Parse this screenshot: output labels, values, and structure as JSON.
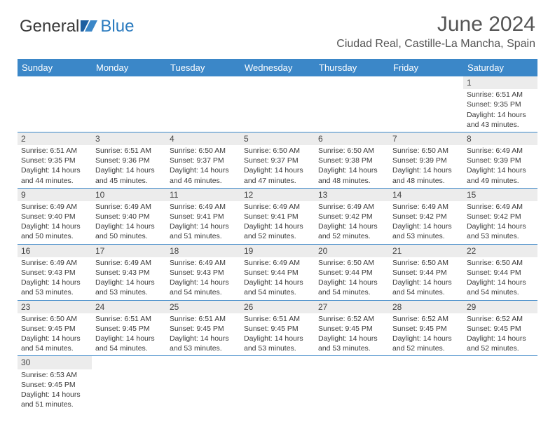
{
  "logo": {
    "word1": "General",
    "word2": "Blue"
  },
  "title": "June 2024",
  "location": "Ciudad Real, Castille-La Mancha, Spain",
  "colors": {
    "header_blue": "#3b87c8",
    "band_gray": "#ececec",
    "row_divider": "#3b87c8",
    "logo_blue": "#2b7bbf",
    "text": "#3a3a3a"
  },
  "day_headers": [
    "Sunday",
    "Monday",
    "Tuesday",
    "Wednesday",
    "Thursday",
    "Friday",
    "Saturday"
  ],
  "weeks": [
    [
      {
        "n": "",
        "sr": "",
        "ss": "",
        "d1": "",
        "d2": ""
      },
      {
        "n": "",
        "sr": "",
        "ss": "",
        "d1": "",
        "d2": ""
      },
      {
        "n": "",
        "sr": "",
        "ss": "",
        "d1": "",
        "d2": ""
      },
      {
        "n": "",
        "sr": "",
        "ss": "",
        "d1": "",
        "d2": ""
      },
      {
        "n": "",
        "sr": "",
        "ss": "",
        "d1": "",
        "d2": ""
      },
      {
        "n": "",
        "sr": "",
        "ss": "",
        "d1": "",
        "d2": ""
      },
      {
        "n": "1",
        "sr": "Sunrise: 6:51 AM",
        "ss": "Sunset: 9:35 PM",
        "d1": "Daylight: 14 hours",
        "d2": "and 43 minutes."
      }
    ],
    [
      {
        "n": "2",
        "sr": "Sunrise: 6:51 AM",
        "ss": "Sunset: 9:35 PM",
        "d1": "Daylight: 14 hours",
        "d2": "and 44 minutes."
      },
      {
        "n": "3",
        "sr": "Sunrise: 6:51 AM",
        "ss": "Sunset: 9:36 PM",
        "d1": "Daylight: 14 hours",
        "d2": "and 45 minutes."
      },
      {
        "n": "4",
        "sr": "Sunrise: 6:50 AM",
        "ss": "Sunset: 9:37 PM",
        "d1": "Daylight: 14 hours",
        "d2": "and 46 minutes."
      },
      {
        "n": "5",
        "sr": "Sunrise: 6:50 AM",
        "ss": "Sunset: 9:37 PM",
        "d1": "Daylight: 14 hours",
        "d2": "and 47 minutes."
      },
      {
        "n": "6",
        "sr": "Sunrise: 6:50 AM",
        "ss": "Sunset: 9:38 PM",
        "d1": "Daylight: 14 hours",
        "d2": "and 48 minutes."
      },
      {
        "n": "7",
        "sr": "Sunrise: 6:50 AM",
        "ss": "Sunset: 9:39 PM",
        "d1": "Daylight: 14 hours",
        "d2": "and 48 minutes."
      },
      {
        "n": "8",
        "sr": "Sunrise: 6:49 AM",
        "ss": "Sunset: 9:39 PM",
        "d1": "Daylight: 14 hours",
        "d2": "and 49 minutes."
      }
    ],
    [
      {
        "n": "9",
        "sr": "Sunrise: 6:49 AM",
        "ss": "Sunset: 9:40 PM",
        "d1": "Daylight: 14 hours",
        "d2": "and 50 minutes."
      },
      {
        "n": "10",
        "sr": "Sunrise: 6:49 AM",
        "ss": "Sunset: 9:40 PM",
        "d1": "Daylight: 14 hours",
        "d2": "and 50 minutes."
      },
      {
        "n": "11",
        "sr": "Sunrise: 6:49 AM",
        "ss": "Sunset: 9:41 PM",
        "d1": "Daylight: 14 hours",
        "d2": "and 51 minutes."
      },
      {
        "n": "12",
        "sr": "Sunrise: 6:49 AM",
        "ss": "Sunset: 9:41 PM",
        "d1": "Daylight: 14 hours",
        "d2": "and 52 minutes."
      },
      {
        "n": "13",
        "sr": "Sunrise: 6:49 AM",
        "ss": "Sunset: 9:42 PM",
        "d1": "Daylight: 14 hours",
        "d2": "and 52 minutes."
      },
      {
        "n": "14",
        "sr": "Sunrise: 6:49 AM",
        "ss": "Sunset: 9:42 PM",
        "d1": "Daylight: 14 hours",
        "d2": "and 53 minutes."
      },
      {
        "n": "15",
        "sr": "Sunrise: 6:49 AM",
        "ss": "Sunset: 9:42 PM",
        "d1": "Daylight: 14 hours",
        "d2": "and 53 minutes."
      }
    ],
    [
      {
        "n": "16",
        "sr": "Sunrise: 6:49 AM",
        "ss": "Sunset: 9:43 PM",
        "d1": "Daylight: 14 hours",
        "d2": "and 53 minutes."
      },
      {
        "n": "17",
        "sr": "Sunrise: 6:49 AM",
        "ss": "Sunset: 9:43 PM",
        "d1": "Daylight: 14 hours",
        "d2": "and 53 minutes."
      },
      {
        "n": "18",
        "sr": "Sunrise: 6:49 AM",
        "ss": "Sunset: 9:43 PM",
        "d1": "Daylight: 14 hours",
        "d2": "and 54 minutes."
      },
      {
        "n": "19",
        "sr": "Sunrise: 6:49 AM",
        "ss": "Sunset: 9:44 PM",
        "d1": "Daylight: 14 hours",
        "d2": "and 54 minutes."
      },
      {
        "n": "20",
        "sr": "Sunrise: 6:50 AM",
        "ss": "Sunset: 9:44 PM",
        "d1": "Daylight: 14 hours",
        "d2": "and 54 minutes."
      },
      {
        "n": "21",
        "sr": "Sunrise: 6:50 AM",
        "ss": "Sunset: 9:44 PM",
        "d1": "Daylight: 14 hours",
        "d2": "and 54 minutes."
      },
      {
        "n": "22",
        "sr": "Sunrise: 6:50 AM",
        "ss": "Sunset: 9:44 PM",
        "d1": "Daylight: 14 hours",
        "d2": "and 54 minutes."
      }
    ],
    [
      {
        "n": "23",
        "sr": "Sunrise: 6:50 AM",
        "ss": "Sunset: 9:45 PM",
        "d1": "Daylight: 14 hours",
        "d2": "and 54 minutes."
      },
      {
        "n": "24",
        "sr": "Sunrise: 6:51 AM",
        "ss": "Sunset: 9:45 PM",
        "d1": "Daylight: 14 hours",
        "d2": "and 54 minutes."
      },
      {
        "n": "25",
        "sr": "Sunrise: 6:51 AM",
        "ss": "Sunset: 9:45 PM",
        "d1": "Daylight: 14 hours",
        "d2": "and 53 minutes."
      },
      {
        "n": "26",
        "sr": "Sunrise: 6:51 AM",
        "ss": "Sunset: 9:45 PM",
        "d1": "Daylight: 14 hours",
        "d2": "and 53 minutes."
      },
      {
        "n": "27",
        "sr": "Sunrise: 6:52 AM",
        "ss": "Sunset: 9:45 PM",
        "d1": "Daylight: 14 hours",
        "d2": "and 53 minutes."
      },
      {
        "n": "28",
        "sr": "Sunrise: 6:52 AM",
        "ss": "Sunset: 9:45 PM",
        "d1": "Daylight: 14 hours",
        "d2": "and 52 minutes."
      },
      {
        "n": "29",
        "sr": "Sunrise: 6:52 AM",
        "ss": "Sunset: 9:45 PM",
        "d1": "Daylight: 14 hours",
        "d2": "and 52 minutes."
      }
    ],
    [
      {
        "n": "30",
        "sr": "Sunrise: 6:53 AM",
        "ss": "Sunset: 9:45 PM",
        "d1": "Daylight: 14 hours",
        "d2": "and 51 minutes."
      },
      {
        "n": "",
        "sr": "",
        "ss": "",
        "d1": "",
        "d2": ""
      },
      {
        "n": "",
        "sr": "",
        "ss": "",
        "d1": "",
        "d2": ""
      },
      {
        "n": "",
        "sr": "",
        "ss": "",
        "d1": "",
        "d2": ""
      },
      {
        "n": "",
        "sr": "",
        "ss": "",
        "d1": "",
        "d2": ""
      },
      {
        "n": "",
        "sr": "",
        "ss": "",
        "d1": "",
        "d2": ""
      },
      {
        "n": "",
        "sr": "",
        "ss": "",
        "d1": "",
        "d2": ""
      }
    ]
  ]
}
